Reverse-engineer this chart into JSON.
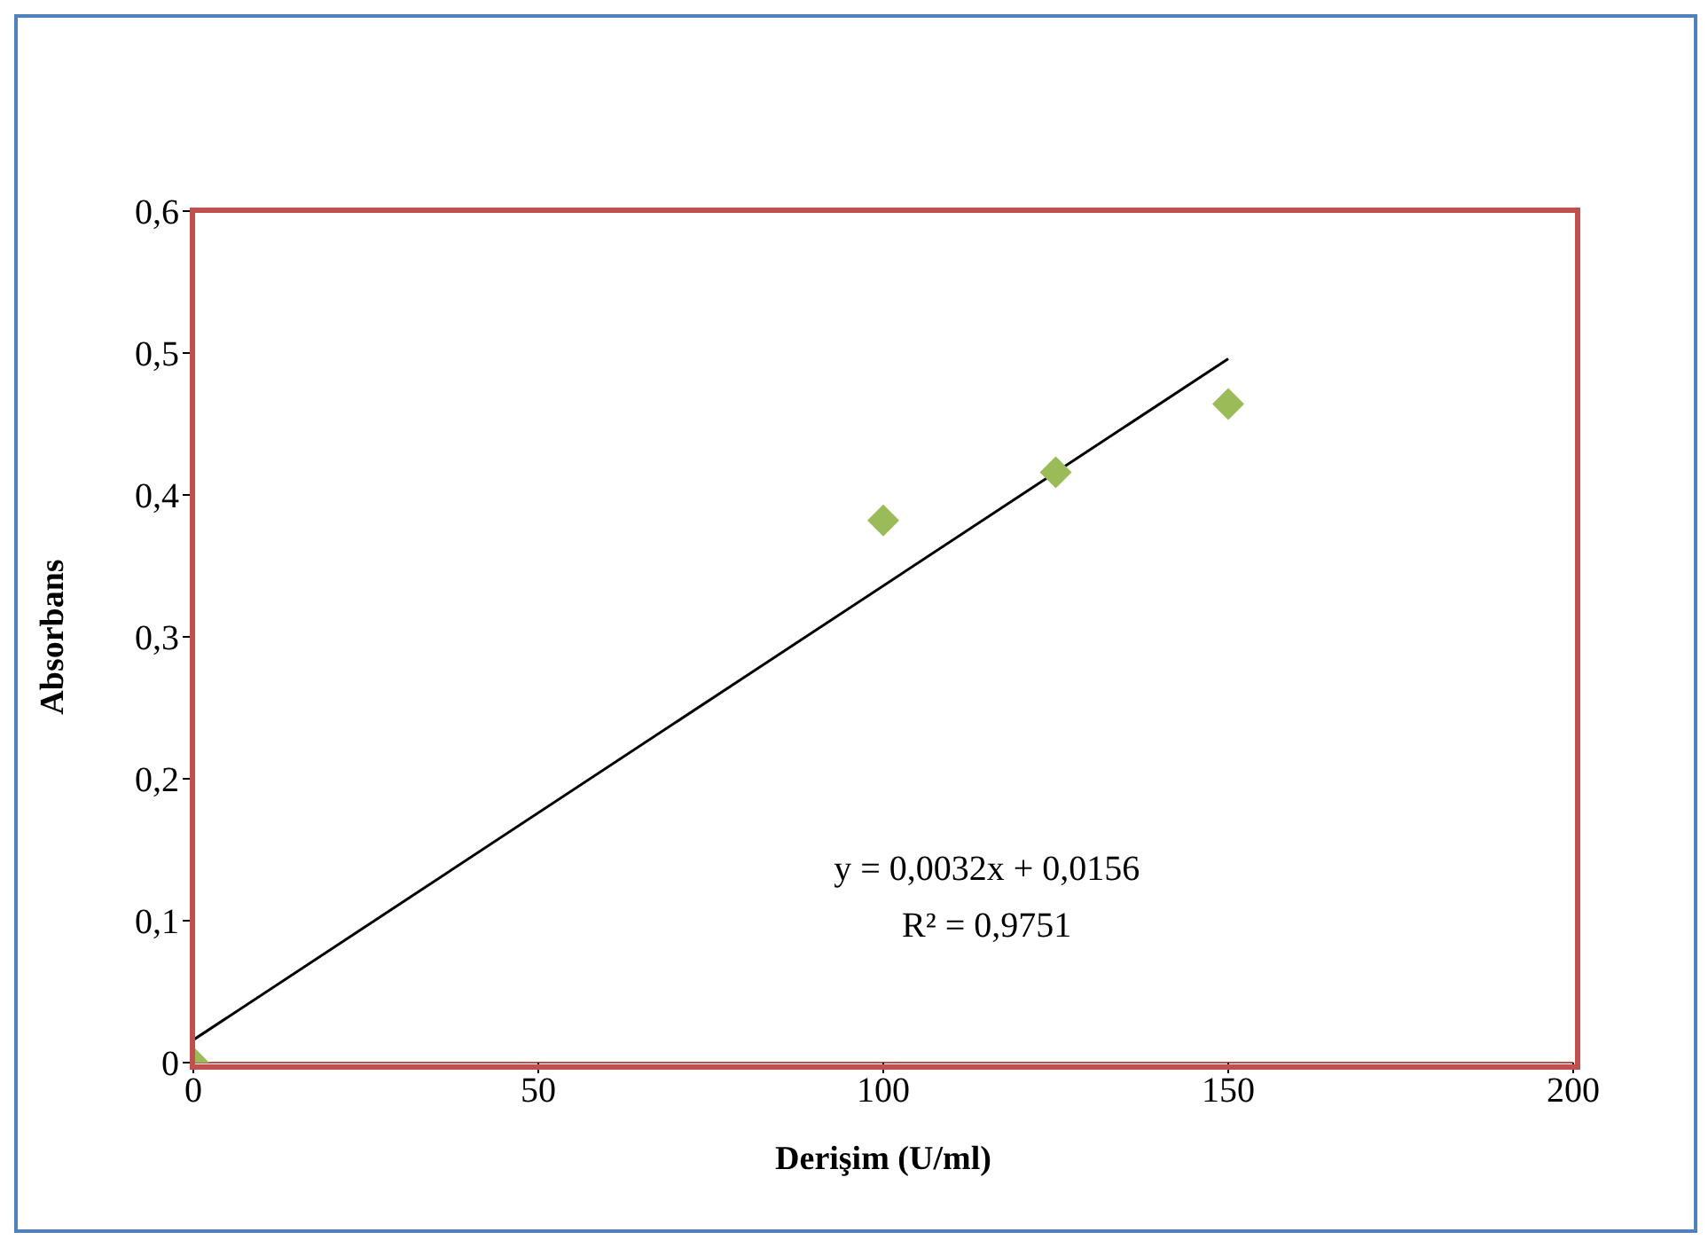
{
  "chart_data": {
    "type": "scatter",
    "xlabel": "Derişim (U/ml)",
    "ylabel": "Absorbans",
    "x": [
      0,
      100,
      125,
      150
    ],
    "series": [
      {
        "type": "scatter",
        "color": "#9bbb59",
        "marker": "diamond",
        "values": [
          0,
          0.382,
          0.416,
          0.464
        ]
      },
      {
        "type": "line",
        "color": "#000000",
        "line_style": "solid",
        "marker": "none",
        "x": [
          0,
          150
        ],
        "values": [
          0.016,
          0.496
        ]
      }
    ],
    "xlim": [
      0,
      200
    ],
    "xticks": [
      0,
      50,
      100,
      150,
      200
    ],
    "ylim": [
      0,
      0.6
    ],
    "yticks": [
      0,
      {
        "value": 0.1,
        "label": "0,1"
      },
      {
        "value": 0.2,
        "label": "0,2"
      },
      {
        "value": 0.3,
        "label": "0,3"
      },
      {
        "value": 0.4,
        "label": "0,4"
      },
      {
        "value": 0.5,
        "label": "0,5"
      },
      {
        "value": 0.6,
        "label": "0,6"
      }
    ],
    "grid": false,
    "annotations": [
      "y = 0,0032x + 0,0156",
      "R² = 0,9751"
    ]
  }
}
